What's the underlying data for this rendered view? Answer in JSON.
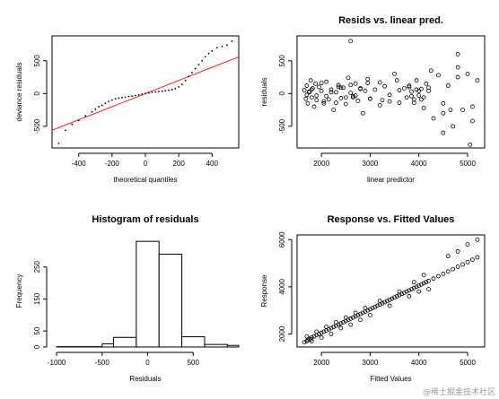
{
  "watermark": "@稀土掘金技术社区",
  "chart_data": [
    {
      "panel": "top-left",
      "type": "scatter",
      "title": "",
      "xlabel": "theoretical quantiles",
      "ylabel": "deviance residuals",
      "xlim": [
        -560,
        560
      ],
      "ylim": [
        -830,
        880
      ],
      "xticks": [
        -400,
        -200,
        0,
        200,
        400
      ],
      "xtick_labels": [
        "-400",
        "-200",
        "0",
        "200",
        "400"
      ],
      "yticks": [
        -500,
        0,
        500
      ],
      "ytick_labels": [
        "-500",
        "0",
        "500"
      ],
      "reference_line": {
        "color": "#ff2020",
        "points": [
          [
            -560,
            -560
          ],
          [
            560,
            560
          ]
        ]
      },
      "points_style": "small dots",
      "x": [
        -520,
        -480,
        -440,
        -400,
        -360,
        -320,
        -300,
        -280,
        -260,
        -240,
        -220,
        -200,
        -180,
        -160,
        -140,
        -120,
        -100,
        -80,
        -60,
        -40,
        -20,
        0,
        20,
        40,
        60,
        80,
        100,
        120,
        140,
        160,
        180,
        200,
        220,
        240,
        260,
        280,
        300,
        320,
        340,
        360,
        380,
        400,
        430,
        460,
        490,
        520
      ],
      "y": [
        -760,
        -560,
        -470,
        -410,
        -340,
        -280,
        -240,
        -200,
        -180,
        -150,
        -120,
        -100,
        -80,
        -70,
        -60,
        -55,
        -45,
        -40,
        -30,
        -20,
        -10,
        0,
        10,
        20,
        25,
        30,
        35,
        40,
        50,
        60,
        75,
        100,
        140,
        200,
        260,
        320,
        380,
        440,
        500,
        560,
        610,
        650,
        700,
        720,
        740,
        800
      ]
    },
    {
      "panel": "top-right",
      "type": "scatter",
      "title": "Resids vs. linear pred.",
      "xlabel": "linear predictor",
      "ylabel": "residuals",
      "xlim": [
        1500,
        5350
      ],
      "ylim": [
        -830,
        880
      ],
      "xticks": [
        2000,
        3000,
        4000,
        5000
      ],
      "xtick_labels": [
        "2000",
        "3000",
        "4000",
        "5000"
      ],
      "yticks": [
        -500,
        0,
        500
      ],
      "ytick_labels": [
        "-500",
        "0",
        "500"
      ],
      "points_style": "open circles",
      "x": [
        1650,
        1680,
        1700,
        1720,
        1750,
        1780,
        1800,
        1820,
        1850,
        1880,
        1900,
        1950,
        2000,
        2050,
        2100,
        2150,
        2200,
        2250,
        2300,
        2350,
        2400,
        2450,
        2500,
        2550,
        2600,
        2650,
        2700,
        2750,
        2800,
        2850,
        2900,
        2950,
        3000,
        3100,
        3200,
        3300,
        3400,
        3500,
        3600,
        3700,
        3750,
        3800,
        3850,
        3900,
        3950,
        4000,
        4050,
        4100,
        4150,
        4200,
        4300,
        4400,
        4500,
        4600,
        4700,
        4800,
        4900,
        5000,
        5100,
        5200,
        1700,
        1800,
        1900,
        2000,
        2100,
        2200,
        2300,
        2400,
        2500,
        2600,
        2700,
        2800,
        3000,
        3200,
        3400,
        3600,
        3800,
        3900,
        4000,
        4100,
        4200,
        4500,
        4800,
        5100,
        1750,
        2050,
        2350,
        2650,
        2950,
        3250,
        3550,
        3850,
        3950,
        4050,
        4250,
        4650,
        2600,
        4800,
        4500,
        5050
      ],
      "y": [
        50,
        -80,
        120,
        -150,
        30,
        200,
        -60,
        80,
        -200,
        150,
        -30,
        100,
        40,
        -120,
        180,
        -90,
        60,
        -250,
        20,
        130,
        -70,
        90,
        -160,
        240,
        10,
        -40,
        150,
        -110,
        70,
        -300,
        40,
        220,
        -80,
        60,
        -180,
        110,
        -20,
        300,
        -140,
        80,
        -60,
        120,
        30,
        -90,
        200,
        -30,
        70,
        -220,
        150,
        40,
        -380,
        280,
        -150,
        120,
        -500,
        400,
        -250,
        300,
        -420,
        200,
        -20,
        60,
        -100,
        160,
        -40,
        20,
        -140,
        90,
        -60,
        130,
        -30,
        80,
        -80,
        170,
        -120,
        50,
        100,
        -140,
        40,
        -60,
        90,
        -300,
        250,
        -200,
        20,
        -150,
        100,
        -60,
        160,
        -100,
        200,
        -40,
        60,
        -90,
        350,
        -250,
        800,
        600,
        -600,
        -780
      ]
    },
    {
      "panel": "bottom-left",
      "type": "bar",
      "title": "Histogram of residuals",
      "xlabel": "Residuals",
      "ylabel": "Frequency",
      "bin_edges": [
        -1000,
        -750,
        -500,
        -375,
        -125,
        125,
        375,
        625,
        875,
        1000
      ],
      "values": [
        1,
        1,
        10,
        30,
        330,
        290,
        32,
        8,
        5
      ],
      "xlim": [
        -1050,
        1000
      ],
      "ylim": [
        0,
        350
      ],
      "xticks": [
        -1000,
        -500,
        0,
        500
      ],
      "xtick_labels": [
        "-1000",
        "-500",
        "0",
        "500"
      ],
      "yticks": [
        0,
        50,
        150,
        250
      ],
      "ytick_labels": [
        "0",
        "50",
        "150",
        "250"
      ]
    },
    {
      "panel": "bottom-right",
      "type": "scatter",
      "title": "Response vs. Fitted Values",
      "xlabel": "Fitted Values",
      "ylabel": "Response",
      "xlim": [
        1500,
        5350
      ],
      "ylim": [
        1450,
        6200
      ],
      "xticks": [
        2000,
        3000,
        4000,
        5000
      ],
      "xtick_labels": [
        "2000",
        "3000",
        "4000",
        "5000"
      ],
      "yticks": [
        2000,
        4000,
        6000
      ],
      "ytick_labels": [
        "2000",
        "4000",
        "6000"
      ],
      "points_style": "open circles",
      "x": [
        1650,
        1700,
        1720,
        1750,
        1780,
        1800,
        1850,
        1900,
        1950,
        2000,
        2050,
        2100,
        2150,
        2200,
        2250,
        2300,
        2350,
        2400,
        2450,
        2500,
        2550,
        2600,
        2650,
        2700,
        2750,
        2800,
        2850,
        2900,
        2950,
        3000,
        3050,
        3100,
        3150,
        3200,
        3250,
        3300,
        3350,
        3400,
        3450,
        3500,
        3550,
        3600,
        3650,
        3700,
        3750,
        3800,
        3850,
        3900,
        3950,
        4000,
        4050,
        4100,
        4150,
        4200,
        4300,
        4400,
        4500,
        4600,
        4700,
        4800,
        4900,
        5000,
        5100,
        5200,
        1700,
        1800,
        1900,
        2000,
        2100,
        2200,
        2300,
        2400,
        2500,
        2600,
        2700,
        2800,
        2900,
        3000,
        3200,
        3400,
        3600,
        3800,
        3900,
        4000,
        4100,
        4200,
        4600,
        4800,
        5000,
        5200
      ],
      "y": [
        1650,
        1700,
        1750,
        1800,
        1780,
        1850,
        1900,
        1950,
        2000,
        2050,
        2100,
        2150,
        2200,
        2250,
        2300,
        2350,
        2400,
        2450,
        2500,
        2550,
        2600,
        2650,
        2700,
        2750,
        2800,
        2850,
        2900,
        2950,
        3000,
        3050,
        3100,
        3150,
        3200,
        3250,
        3300,
        3350,
        3400,
        3450,
        3500,
        3550,
        3600,
        3650,
        3700,
        3750,
        3800,
        3850,
        3900,
        3950,
        4000,
        4050,
        4100,
        4150,
        4200,
        4250,
        4350,
        4450,
        4550,
        4650,
        4750,
        4850,
        4950,
        5050,
        5150,
        5250,
        1900,
        1700,
        2100,
        1850,
        2300,
        2000,
        2500,
        2250,
        2700,
        2400,
        2900,
        2600,
        3100,
        2800,
        3400,
        3200,
        3800,
        3600,
        4200,
        3800,
        4500,
        3900,
        5300,
        5500,
        5800,
        6000
      ]
    }
  ]
}
